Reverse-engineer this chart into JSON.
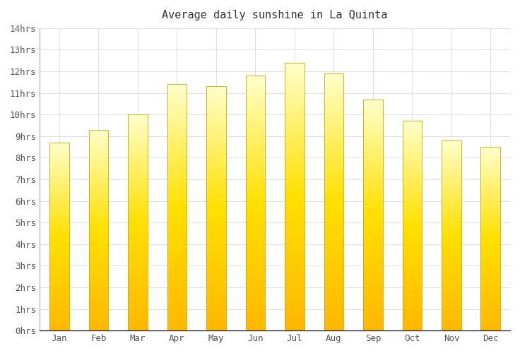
{
  "title": "Average daily sunshine in La Quinta",
  "months": [
    "Jan",
    "Feb",
    "Mar",
    "Apr",
    "May",
    "Jun",
    "Jul",
    "Aug",
    "Sep",
    "Oct",
    "Nov",
    "Dec"
  ],
  "values": [
    8.7,
    9.3,
    10.0,
    11.4,
    11.3,
    11.8,
    12.4,
    11.9,
    10.7,
    9.7,
    8.8,
    8.5
  ],
  "bar_color_top": "#FFFFFF",
  "bar_color_mid": "#FFE000",
  "bar_color_bottom": "#FFB800",
  "bar_edge_color": "#C8A800",
  "ylim": [
    0,
    14
  ],
  "yticks": [
    0,
    1,
    2,
    3,
    4,
    5,
    6,
    7,
    8,
    9,
    10,
    11,
    12,
    13,
    14
  ],
  "ytick_labels": [
    "0hrs",
    "1hrs",
    "2hrs",
    "3hrs",
    "4hrs",
    "5hrs",
    "6hrs",
    "7hrs",
    "8hrs",
    "9hrs",
    "10hrs",
    "11hrs",
    "12hrs",
    "13hrs",
    "14hrs"
  ],
  "background_color": "#ffffff",
  "grid_color": "#e0e0e0",
  "title_fontsize": 11,
  "tick_fontsize": 9,
  "font_family": "monospace",
  "bar_width": 0.5,
  "figsize": [
    7.36,
    5.0
  ],
  "dpi": 100
}
